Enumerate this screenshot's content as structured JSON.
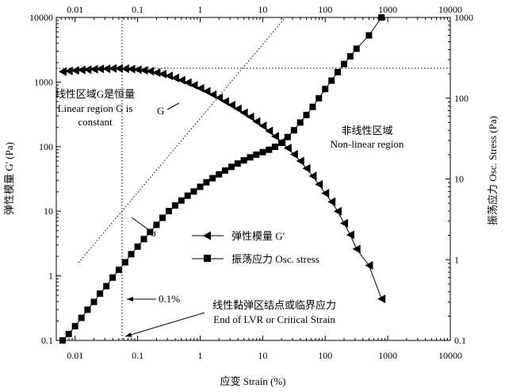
{
  "chart_data": {
    "type": "scatter",
    "xlabel": "应变 Strain (%)",
    "ylabel": "弹性模量 G' (Pa)",
    "y2label": "振荡应力 Osc. Stress (Pa)",
    "x_scale": "log",
    "y_scale": "log",
    "y2_scale": "log",
    "xlim": [
      0.005,
      10000
    ],
    "ylim": [
      0.1,
      10000
    ],
    "y2lim": [
      0.1,
      1000
    ],
    "x_ticks": [
      "0.01",
      "0.1",
      "1",
      "10",
      "100",
      "1000",
      "10000"
    ],
    "y_ticks": [
      "0.1",
      "1",
      "10",
      "100",
      "1000",
      "10000"
    ],
    "y2_ticks": [
      "0.1",
      "1",
      "10",
      "100",
      "1000"
    ],
    "grid": false,
    "legend_position": "center-right",
    "series": [
      {
        "name": "弹性模量 G'",
        "axis": "left",
        "marker": "left-triangle",
        "x": [
          0.0063,
          0.0079,
          0.01,
          0.0126,
          0.0158,
          0.02,
          0.025,
          0.0316,
          0.0398,
          0.05,
          0.063,
          0.079,
          0.1,
          0.126,
          0.158,
          0.2,
          0.25,
          0.316,
          0.398,
          0.5,
          0.63,
          0.79,
          1.0,
          1.26,
          1.58,
          2.0,
          2.5,
          3.16,
          3.98,
          5.0,
          6.3,
          7.9,
          10,
          12.6,
          15.8,
          20,
          25,
          31.6,
          39.8,
          50,
          63,
          79,
          100,
          126,
          158,
          200,
          251,
          316,
          501,
          794
        ],
        "values": [
          1450,
          1480,
          1510,
          1540,
          1560,
          1580,
          1600,
          1610,
          1620,
          1620,
          1610,
          1590,
          1560,
          1520,
          1470,
          1400,
          1330,
          1250,
          1160,
          1070,
          980,
          890,
          800,
          720,
          640,
          570,
          500,
          440,
          385,
          335,
          290,
          245,
          210,
          175,
          145,
          118,
          95,
          76,
          60,
          46,
          35,
          26,
          19,
          14,
          10,
          6.5,
          4.3,
          2.6,
          1.45,
          0.44
        ]
      },
      {
        "name": "振荡应力 Osc. stress",
        "axis": "right",
        "marker": "square",
        "x": [
          0.0063,
          0.0079,
          0.01,
          0.0126,
          0.0158,
          0.02,
          0.025,
          0.0316,
          0.0398,
          0.05,
          0.063,
          0.079,
          0.1,
          0.126,
          0.158,
          0.2,
          0.25,
          0.316,
          0.398,
          0.5,
          0.63,
          0.79,
          1.0,
          1.26,
          1.58,
          2.0,
          2.5,
          3.16,
          3.98,
          5.0,
          6.3,
          7.9,
          10,
          12.6,
          15.8,
          20,
          25,
          31.6,
          39.8,
          50,
          63,
          79,
          100,
          126,
          158,
          200,
          251,
          316,
          501,
          794
        ],
        "values": [
          0.1,
          0.12,
          0.15,
          0.19,
          0.24,
          0.3,
          0.38,
          0.47,
          0.6,
          0.75,
          0.93,
          1.17,
          1.45,
          1.8,
          2.2,
          2.7,
          3.3,
          4.0,
          4.7,
          5.4,
          6.2,
          7.0,
          8.0,
          9.1,
          10.2,
          11.4,
          12.7,
          14.1,
          15.5,
          17.0,
          18.5,
          20.0,
          21.5,
          23.0,
          25.0,
          28.0,
          33.0,
          40.0,
          50.0,
          62.0,
          78.0,
          100.0,
          130.0,
          165.0,
          210.0,
          265.0,
          330.0,
          410.0,
          600.0,
          1000.0
        ]
      }
    ],
    "reference_lines": [
      {
        "type": "vertical",
        "x": 0.1,
        "style": "dotted"
      },
      {
        "type": "horizontal",
        "y": 1700,
        "style": "dotted"
      },
      {
        "type": "diagonal",
        "style": "dotted"
      }
    ],
    "annotations": {
      "linear_region_cn": "线性区域G是恒量",
      "linear_region_en_1": "Linear region G is",
      "linear_region_en_2": "constant",
      "g_label": "G",
      "nonlinear_cn": "非线性区域",
      "nonlinear_en": "Non-linear region",
      "sigma_label": "σ",
      "strain_01_label": "0.1%",
      "lvr_cn": "线性黏弹区结点或临界应力",
      "lvr_en": "End of LVR or Critical Strain"
    }
  }
}
